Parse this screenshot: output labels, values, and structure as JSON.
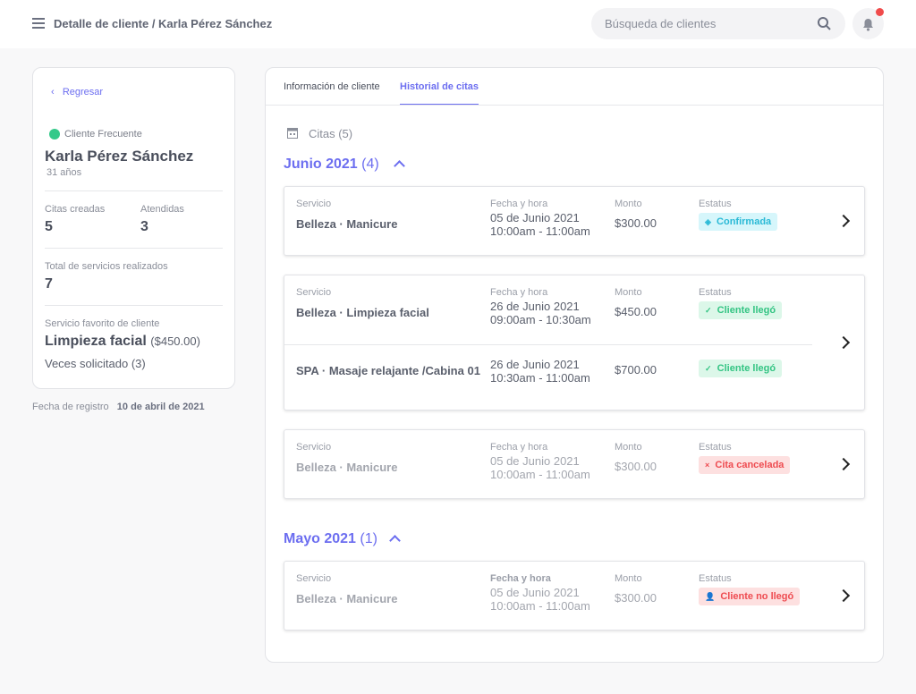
{
  "header": {
    "title": "Detalle de cliente / Karla Pérez Sánchez",
    "search_placeholder": "Búsqueda de clientes",
    "menu_icon": "hamburger-icon",
    "search_icon": "search-icon",
    "bell_icon": "bell-icon"
  },
  "client": {
    "back": "Regresar",
    "tag": "Cliente Frecuente",
    "tag_color": "#34c98a",
    "name": "Karla Pérez Sánchez",
    "age": "31 años",
    "created_label": "Citas creadas",
    "created": "5",
    "attended_label": "Atendidas",
    "attended": "3",
    "total_label": "Total de servicios realizados",
    "total": "7",
    "fav_label": "Servicio favorito de cliente",
    "fav": "Limpieza facial",
    "fav_price": "($450.00)",
    "times": "Veces solicitado (3)",
    "reg_label": "Fecha de registro",
    "reg_date": "10 de abril de 2021"
  },
  "tabs": [
    {
      "label": "Información de cliente",
      "active": false
    },
    {
      "label": "Historial de citas",
      "active": true
    }
  ],
  "citas": {
    "label": "Citas (5)",
    "accent": "#6c6ef0"
  },
  "labels": {
    "service": "Servicio",
    "date": "Fecha y hora",
    "amount": "Monto",
    "status": "Estatus"
  },
  "groups": [
    {
      "month": "Junio 2021",
      "count": "(4)",
      "appointments": [
        {
          "items": [
            {
              "service": "Belleza · Manicure",
              "date": "05 de Junio 2021",
              "time": "10:00am - 11:00am",
              "amount": "$300.00",
              "status": "Confirmada",
              "icon": "◈"
            }
          ]
        },
        {
          "items": [
            {
              "service": "Belleza · Limpieza facial",
              "date": "26 de Junio 2021",
              "time": "09:00am - 10:30am",
              "amount": "$450.00",
              "status": "Cliente llegó",
              "icon": "✓"
            },
            {
              "service": "SPA · Masaje relajante /Cabina 01",
              "date": "26 de Junio 2021",
              "time": "10:30am - 11:00am",
              "amount": "$700.00",
              "status": "Cliente llegó",
              "icon": "✓"
            }
          ]
        },
        {
          "items": [
            {
              "service": "Belleza · Manicure",
              "date": "05 de Junio 2021",
              "time": "10:00am - 11:00am",
              "amount": "$300.00",
              "status": "Cita cancelada",
              "icon": "×"
            }
          ]
        }
      ]
    },
    {
      "month": "Mayo 2021",
      "count": "(1)",
      "appointments": [
        {
          "items": [
            {
              "service": "Belleza · Manicure",
              "date": "05 de Junio 2021",
              "time": "10:00am - 11:00am",
              "amount": "$300.00",
              "status": "Cliente no llegó",
              "icon": "👤"
            }
          ]
        }
      ]
    }
  ]
}
